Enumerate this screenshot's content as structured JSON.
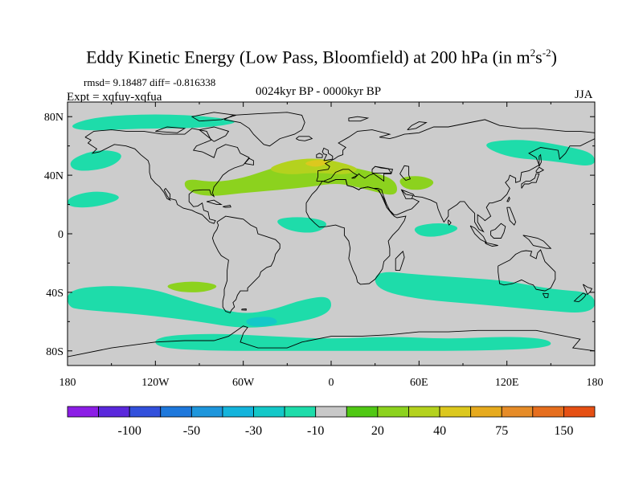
{
  "chart_data": {
    "type": "heatmap",
    "title": "Eddy Kinetic Energy (Low Pass, Bloomfield) at 200 hPa (in m",
    "title_exp1": "2",
    "title_mid": "s",
    "title_exp2": "-2",
    "title_end": ")",
    "stats": "rmsd= 9.18487 diff= -0.816338",
    "experiment": "Expt = xqfuy-xqfua",
    "period": "0024kyr BP - 0000kyr BP",
    "season": "JJA",
    "x_range": [
      -180,
      180
    ],
    "y_range": [
      -90,
      90
    ],
    "x_ticks": [
      {
        "value": -180,
        "label": "180"
      },
      {
        "value": -120,
        "label": "120W"
      },
      {
        "value": -60,
        "label": "60W"
      },
      {
        "value": 0,
        "label": "0"
      },
      {
        "value": 60,
        "label": "60E"
      },
      {
        "value": 120,
        "label": "120E"
      },
      {
        "value": 180,
        "label": "180"
      }
    ],
    "y_ticks": [
      {
        "value": 80,
        "label": "80N"
      },
      {
        "value": 40,
        "label": "40N"
      },
      {
        "value": 0,
        "label": "0"
      },
      {
        "value": -40,
        "label": "40S"
      },
      {
        "value": -80,
        "label": "80S"
      }
    ],
    "background_color": "#cccccc",
    "colorbar": {
      "colors": [
        "#8c1ee6",
        "#5a28dc",
        "#3250dc",
        "#1e78dc",
        "#1e96dc",
        "#14b4dc",
        "#14c8c8",
        "#1edcaa",
        "#c8c8c8",
        "#50c814",
        "#8cd21e",
        "#b4d21e",
        "#dcc81e",
        "#e6aa1e",
        "#e68c28",
        "#e66e1e",
        "#e65014"
      ],
      "labels": [
        {
          "after_box": 2,
          "label": "-100"
        },
        {
          "after_box": 4,
          "label": "-50"
        },
        {
          "after_box": 6,
          "label": "-30"
        },
        {
          "after_box": 8,
          "label": "-10"
        },
        {
          "after_box": 10,
          "label": "20"
        },
        {
          "after_box": 12,
          "label": "40"
        },
        {
          "after_box": 14,
          "label": "75"
        },
        {
          "after_box": 16,
          "label": "150"
        }
      ]
    },
    "regions": [
      {
        "name": "north-atlantic-positive",
        "color": "#8cd21e",
        "points": [
          [
            -100,
            38
          ],
          [
            -80,
            35
          ],
          [
            -60,
            38
          ],
          [
            -40,
            45
          ],
          [
            -20,
            50
          ],
          [
            0,
            50
          ],
          [
            15,
            45
          ],
          [
            30,
            42
          ],
          [
            45,
            36
          ],
          [
            45,
            25
          ],
          [
            25,
            30
          ],
          [
            5,
            35
          ],
          [
            -15,
            32
          ],
          [
            -35,
            30
          ],
          [
            -60,
            28
          ],
          [
            -85,
            25
          ],
          [
            -100,
            30
          ]
        ]
      },
      {
        "name": "north-atlantic-core",
        "color": "#b4d21e",
        "points": [
          [
            -45,
            44
          ],
          [
            -30,
            50
          ],
          [
            -10,
            52
          ],
          [
            10,
            48
          ],
          [
            20,
            44
          ],
          [
            10,
            40
          ],
          [
            -10,
            42
          ],
          [
            -30,
            40
          ]
        ]
      },
      {
        "name": "north-atlantic-peak",
        "color": "#dcc81e",
        "points": [
          [
            -20,
            48
          ],
          [
            -10,
            51
          ],
          [
            0,
            49
          ],
          [
            -10,
            45
          ]
        ]
      },
      {
        "name": "caspian-positive",
        "color": "#8cd21e",
        "points": [
          [
            45,
            38
          ],
          [
            60,
            40
          ],
          [
            72,
            36
          ],
          [
            65,
            30
          ],
          [
            50,
            30
          ]
        ]
      },
      {
        "name": "south-pacific-positive",
        "color": "#8cd21e",
        "points": [
          [
            -115,
            -35
          ],
          [
            -95,
            -32
          ],
          [
            -75,
            -35
          ],
          [
            -85,
            -40
          ],
          [
            -105,
            -40
          ]
        ]
      },
      {
        "name": "arctic-negative",
        "color": "#1edcaa",
        "points": [
          [
            -180,
            74
          ],
          [
            -160,
            80
          ],
          [
            -120,
            82
          ],
          [
            -80,
            80
          ],
          [
            -60,
            76
          ],
          [
            -90,
            72
          ],
          [
            -130,
            72
          ],
          [
            -170,
            70
          ]
        ]
      },
      {
        "name": "pacific-negative-north",
        "color": "#1edcaa",
        "points": [
          [
            -180,
            50
          ],
          [
            -160,
            58
          ],
          [
            -140,
            55
          ],
          [
            -150,
            45
          ],
          [
            -175,
            42
          ]
        ]
      },
      {
        "name": "pacific-negative-west",
        "color": "#1edcaa",
        "points": [
          [
            100,
            62
          ],
          [
            130,
            65
          ],
          [
            160,
            60
          ],
          [
            180,
            55
          ],
          [
            180,
            45
          ],
          [
            150,
            50
          ],
          [
            120,
            52
          ]
        ]
      },
      {
        "name": "pacific-negative-equator",
        "color": "#1edcaa",
        "points": [
          [
            -180,
            25
          ],
          [
            -160,
            30
          ],
          [
            -140,
            25
          ],
          [
            -160,
            18
          ],
          [
            -180,
            18
          ]
        ]
      },
      {
        "name": "south-pacific-negative",
        "color": "#1edcaa",
        "points": [
          [
            -180,
            -38
          ],
          [
            -150,
            -35
          ],
          [
            -120,
            -38
          ],
          [
            -100,
            -45
          ],
          [
            -80,
            -50
          ],
          [
            -60,
            -55
          ],
          [
            -40,
            -52
          ],
          [
            -20,
            -45
          ],
          [
            0,
            -42
          ],
          [
            0,
            -55
          ],
          [
            -30,
            -62
          ],
          [
            -60,
            -65
          ],
          [
            -90,
            -60
          ],
          [
            -130,
            -55
          ],
          [
            -170,
            -52
          ],
          [
            -180,
            -50
          ]
        ]
      },
      {
        "name": "indian-ocean-negative",
        "color": "#1edcaa",
        "points": [
          [
            30,
            -25
          ],
          [
            60,
            -28
          ],
          [
            90,
            -30
          ],
          [
            120,
            -32
          ],
          [
            150,
            -38
          ],
          [
            180,
            -40
          ],
          [
            180,
            -55
          ],
          [
            140,
            -52
          ],
          [
            100,
            -48
          ],
          [
            60,
            -45
          ],
          [
            30,
            -38
          ]
        ]
      },
      {
        "name": "tropical-atlantic-negative",
        "color": "#1edcaa",
        "points": [
          [
            -40,
            10
          ],
          [
            -20,
            12
          ],
          [
            0,
            8
          ],
          [
            -10,
            0
          ],
          [
            -30,
            2
          ]
        ]
      },
      {
        "name": "indian-equator-negative",
        "color": "#1edcaa",
        "points": [
          [
            55,
            5
          ],
          [
            75,
            8
          ],
          [
            90,
            4
          ],
          [
            75,
            -2
          ],
          [
            60,
            -2
          ]
        ]
      },
      {
        "name": "antarctic-negative",
        "color": "#1edcaa",
        "points": [
          [
            -120,
            -70
          ],
          [
            -80,
            -68
          ],
          [
            -40,
            -70
          ],
          [
            0,
            -72
          ],
          [
            40,
            -70
          ],
          [
            80,
            -72
          ],
          [
            120,
            -70
          ],
          [
            150,
            -72
          ],
          [
            150,
            -78
          ],
          [
            100,
            -80
          ],
          [
            40,
            -80
          ],
          [
            -20,
            -80
          ],
          [
            -80,
            -80
          ],
          [
            -120,
            -78
          ]
        ]
      },
      {
        "name": "deep-negative-patch",
        "color": "#14c8c8",
        "points": [
          [
            -60,
            -58
          ],
          [
            -40,
            -56
          ],
          [
            -35,
            -62
          ],
          [
            -55,
            -64
          ]
        ]
      }
    ]
  }
}
